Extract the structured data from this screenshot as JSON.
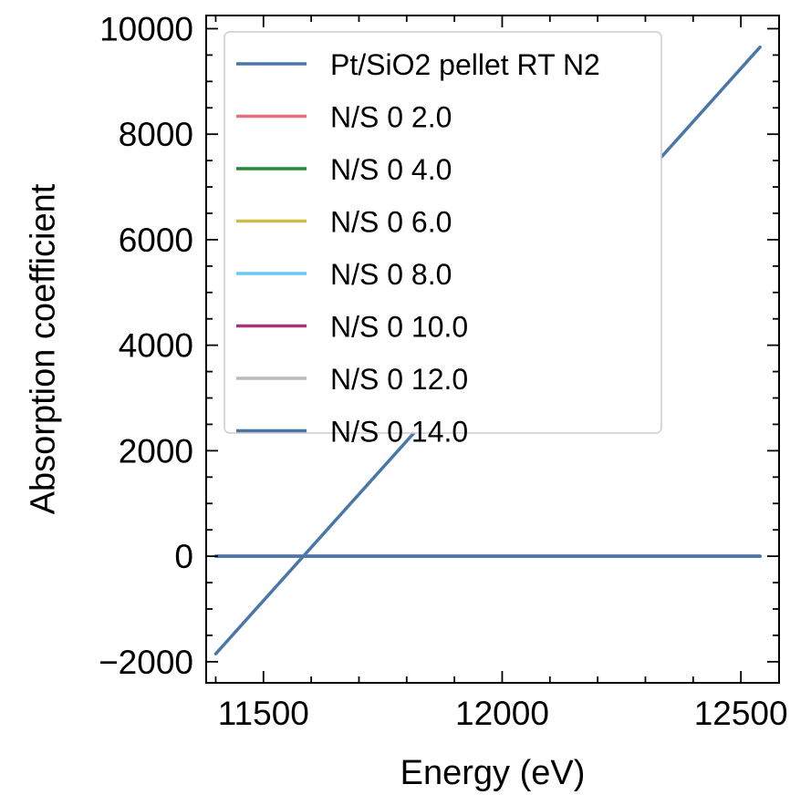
{
  "chart_data": {
    "type": "line",
    "title": "",
    "xlabel": "Energy (eV)",
    "ylabel": "Absorption coefficient",
    "xlim": [
      11380,
      12580
    ],
    "ylim": [
      -2400,
      10250
    ],
    "xticks": [
      11500,
      12000,
      12500
    ],
    "xtick_labels": [
      "11500",
      "12000",
      "12500"
    ],
    "yticks": [
      -2000,
      0,
      2000,
      4000,
      6000,
      8000,
      10000
    ],
    "ytick_labels": [
      "−2000",
      "0",
      "2000",
      "4000",
      "6000",
      "8000",
      "10000"
    ],
    "grid": false,
    "legend_position": "upper-left",
    "series": [
      {
        "name": "Pt/SiO2 pellet RT N2",
        "color": "#4a76a8",
        "x": [
          11400,
          12540
        ],
        "y": [
          -1850,
          9650
        ]
      },
      {
        "name": "N/S 0 2.0",
        "color": "#e8707e",
        "x": [
          11400,
          12540
        ],
        "y": [
          0,
          0
        ]
      },
      {
        "name": "N/S 0 4.0",
        "color": "#228833",
        "x": [
          11400,
          12540
        ],
        "y": [
          0,
          0
        ]
      },
      {
        "name": "N/S 0 6.0",
        "color": "#ccbb44",
        "x": [
          11400,
          12540
        ],
        "y": [
          0,
          0
        ]
      },
      {
        "name": "N/S 0 8.0",
        "color": "#66ccee",
        "x": [
          11400,
          12540
        ],
        "y": [
          0,
          0
        ]
      },
      {
        "name": "N/S 0 10.0",
        "color": "#aa3377",
        "x": [
          11400,
          12540
        ],
        "y": [
          0,
          0
        ]
      },
      {
        "name": "N/S 0 12.0",
        "color": "#bbbbbb",
        "x": [
          11400,
          12540
        ],
        "y": [
          0,
          0
        ]
      },
      {
        "name": "N/S 0 14.0",
        "color": "#4a76a8",
        "x": [
          11400,
          12540
        ],
        "y": [
          0,
          0
        ]
      }
    ]
  }
}
